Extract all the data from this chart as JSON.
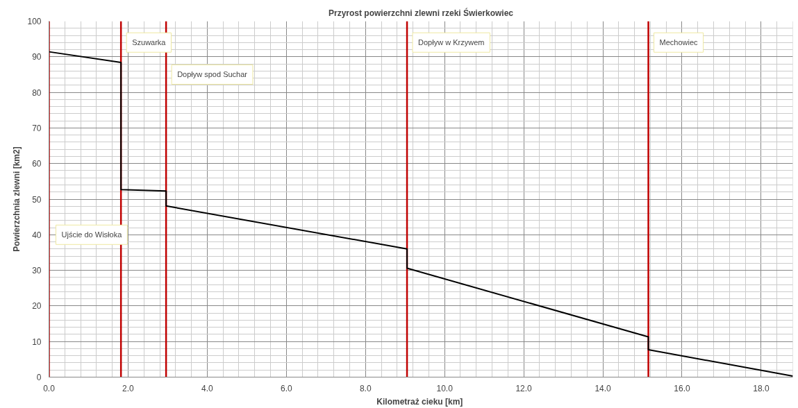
{
  "chart_data": {
    "type": "line",
    "title": "Przyrost powierzchni zlewni rzeki Świerkowiec",
    "xlabel": "Kilometraż  cieku [km]",
    "ylabel": "Powierzchnia zlewni [km2]",
    "series": [
      {
        "color": "#000000",
        "x": [
          0,
          1.82,
          1.82,
          2.96,
          2.96,
          9.05,
          9.05,
          15.15,
          15.15,
          18.8
        ],
        "values": [
          91.4,
          88.4,
          52.7,
          52.3,
          48.1,
          36.0,
          30.6,
          11.3,
          7.7,
          0.3
        ]
      }
    ],
    "xlim": [
      0,
      18.8
    ],
    "ylim": [
      0,
      100
    ],
    "xticks": [
      {
        "value": 0,
        "label": "0.0"
      },
      {
        "value": 2,
        "label": "2.0"
      },
      {
        "value": 4,
        "label": "4.0"
      },
      {
        "value": 6,
        "label": "6.0"
      },
      {
        "value": 8,
        "label": "8.0"
      },
      {
        "value": 10,
        "label": "10.0"
      },
      {
        "value": 12,
        "label": "12.0"
      },
      {
        "value": 14,
        "label": "14.0"
      },
      {
        "value": 16,
        "label": "16.0"
      },
      {
        "value": 18,
        "label": "18.0"
      }
    ],
    "yticks": [
      0,
      10,
      20,
      30,
      40,
      50,
      60,
      70,
      80,
      90,
      100
    ],
    "ref_lines": [
      {
        "axis": "x",
        "value": 0,
        "label": "Ujście do Wisłoka",
        "color": "#c00000"
      },
      {
        "axis": "x",
        "value": 1.82,
        "label": "Szuwarka",
        "color": "#c00000"
      },
      {
        "axis": "x",
        "value": 2.96,
        "label": "Dopływ spod Suchar",
        "color": "#c00000"
      },
      {
        "axis": "x",
        "value": 9.05,
        "label": "Dopływ w Krzywem",
        "color": "#c00000"
      },
      {
        "axis": "x",
        "value": 15.15,
        "label": "Mechowiec",
        "color": "#c00000"
      }
    ],
    "grid": true,
    "marker": "none",
    "line_style": "solid"
  }
}
